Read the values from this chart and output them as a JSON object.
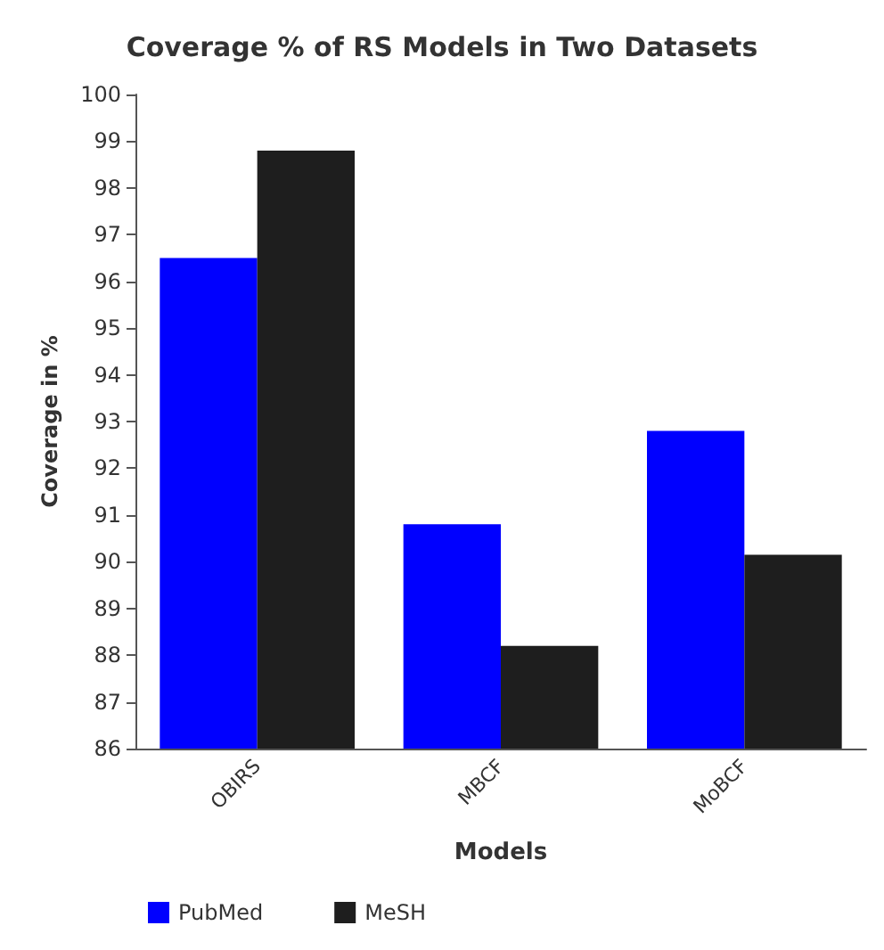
{
  "chart_data": {
    "type": "bar",
    "title": "Coverage % of RS Models in Two Datasets",
    "xlabel": "Models",
    "ylabel": "Coverage in %",
    "categories": [
      "OBIRS",
      "MBCF",
      "MoBCF"
    ],
    "series": [
      {
        "name": "PubMed",
        "color": "#0000ff",
        "values": [
          96.5,
          90.8,
          92.8
        ]
      },
      {
        "name": "MeSH",
        "color": "#1e1e1e",
        "values": [
          98.8,
          88.2,
          90.15
        ]
      }
    ],
    "ylim": [
      86,
      100
    ],
    "yticks": [
      86,
      87,
      88,
      89,
      90,
      91,
      92,
      93,
      94,
      95,
      96,
      97,
      98,
      99,
      100
    ],
    "grid": false,
    "legend": "bottom left"
  }
}
